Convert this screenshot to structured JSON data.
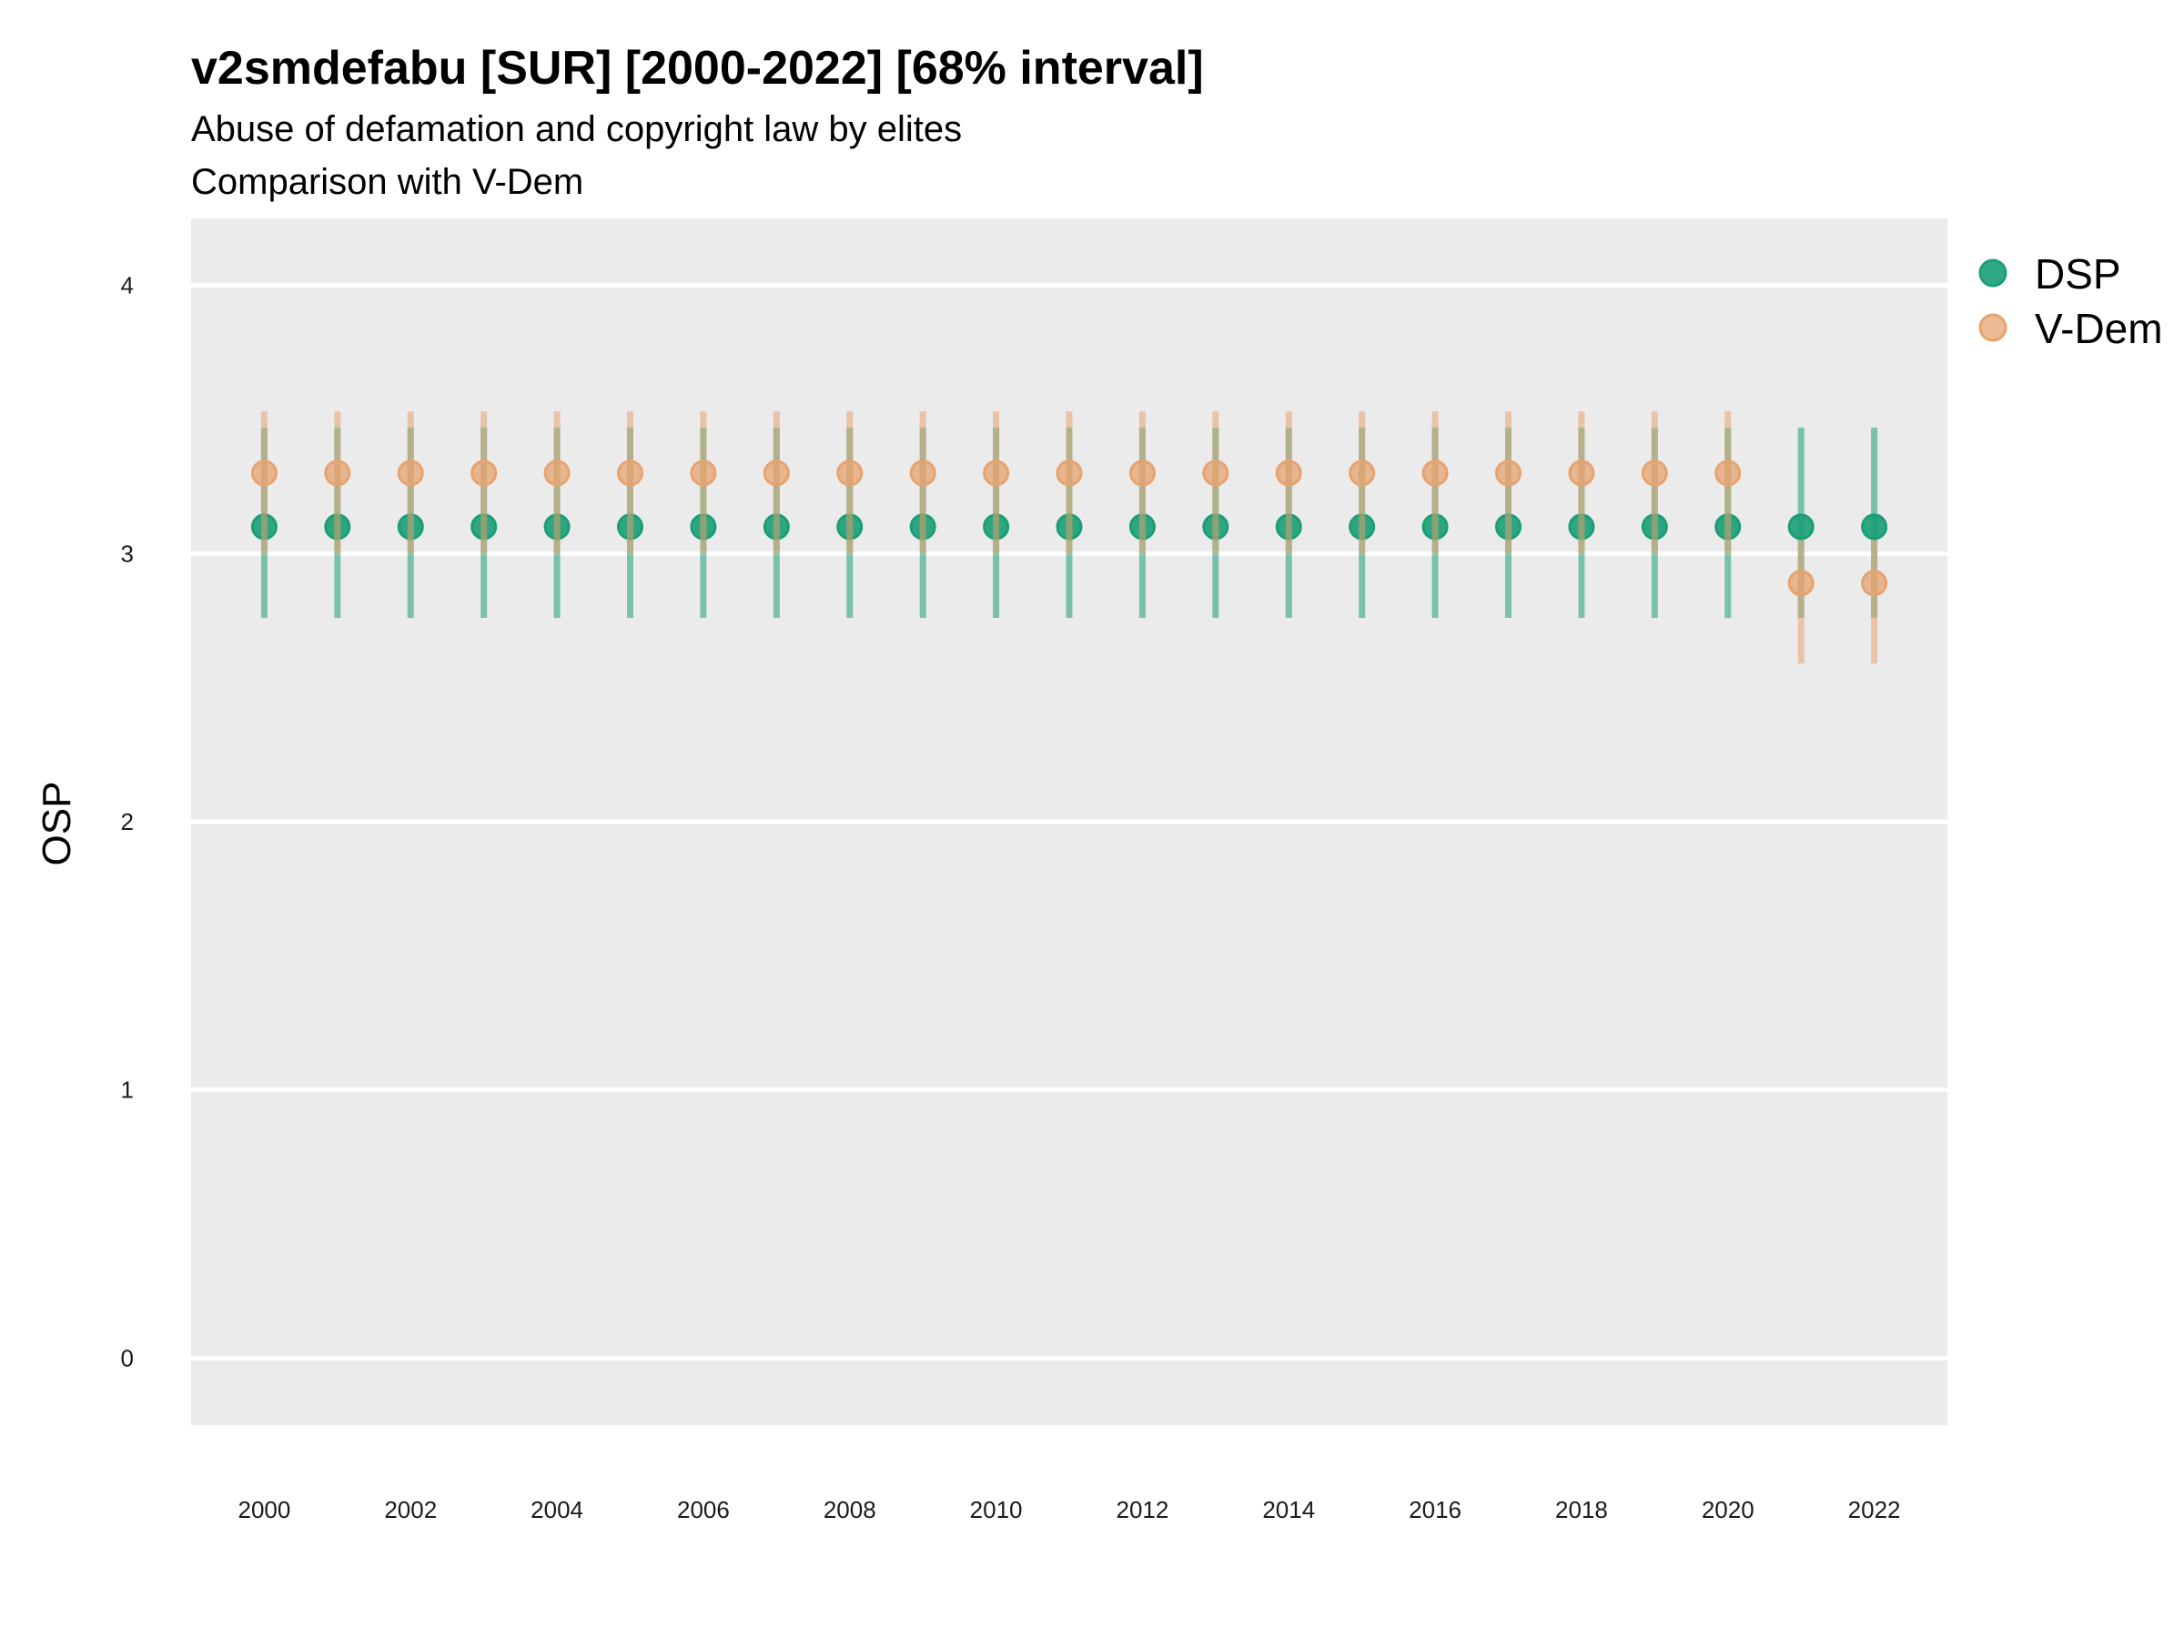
{
  "chart_data": {
    "type": "scatter",
    "title": "v2smdefabu [SUR] [2000-2022] [68% interval]",
    "subtitle_lines": [
      "Abuse of defamation and copyright law by elites",
      "Comparison with V-Dem"
    ],
    "xlabel": "",
    "ylabel": "OSP",
    "x": [
      2000,
      2001,
      2002,
      2003,
      2004,
      2005,
      2006,
      2007,
      2008,
      2009,
      2010,
      2011,
      2012,
      2013,
      2014,
      2015,
      2016,
      2017,
      2018,
      2019,
      2020,
      2021,
      2022
    ],
    "x_ticks": [
      "2000",
      "2002",
      "2004",
      "2006",
      "2008",
      "2010",
      "2012",
      "2014",
      "2016",
      "2018",
      "2020",
      "2022"
    ],
    "y_ticks": [
      "0",
      "1",
      "2",
      "3",
      "4"
    ],
    "xlim": [
      1999,
      2023
    ],
    "ylim": [
      -0.25,
      4.25
    ],
    "grid": "horizontal",
    "legend_position": "right",
    "series": [
      {
        "name": "DSP",
        "color": "#1b9e77",
        "values": [
          3.1,
          3.1,
          3.1,
          3.1,
          3.1,
          3.1,
          3.1,
          3.1,
          3.1,
          3.1,
          3.1,
          3.1,
          3.1,
          3.1,
          3.1,
          3.1,
          3.1,
          3.1,
          3.1,
          3.1,
          3.1,
          3.1,
          3.1
        ],
        "lower": [
          2.76,
          2.76,
          2.76,
          2.76,
          2.76,
          2.76,
          2.76,
          2.76,
          2.76,
          2.76,
          2.76,
          2.76,
          2.76,
          2.76,
          2.76,
          2.76,
          2.76,
          2.76,
          2.76,
          2.76,
          2.76,
          2.76,
          2.76
        ],
        "upper": [
          3.47,
          3.47,
          3.47,
          3.47,
          3.47,
          3.47,
          3.47,
          3.47,
          3.47,
          3.47,
          3.47,
          3.47,
          3.47,
          3.47,
          3.47,
          3.47,
          3.47,
          3.47,
          3.47,
          3.47,
          3.47,
          3.47,
          3.47
        ]
      },
      {
        "name": "V-Dem",
        "color": "#e6a36f",
        "values": [
          3.3,
          3.3,
          3.3,
          3.3,
          3.3,
          3.3,
          3.3,
          3.3,
          3.3,
          3.3,
          3.3,
          3.3,
          3.3,
          3.3,
          3.3,
          3.3,
          3.3,
          3.3,
          3.3,
          3.3,
          3.3,
          2.89,
          2.89
        ],
        "lower": [
          3.0,
          3.0,
          3.0,
          3.0,
          3.0,
          3.0,
          3.0,
          3.0,
          3.0,
          3.0,
          3.0,
          3.0,
          3.0,
          3.0,
          3.0,
          3.0,
          3.0,
          3.0,
          3.0,
          3.0,
          3.0,
          2.59,
          2.59
        ],
        "upper": [
          3.53,
          3.53,
          3.53,
          3.53,
          3.53,
          3.53,
          3.53,
          3.53,
          3.53,
          3.53,
          3.53,
          3.53,
          3.53,
          3.53,
          3.53,
          3.53,
          3.53,
          3.53,
          3.53,
          3.53,
          3.53,
          3.05,
          3.05
        ]
      }
    ]
  }
}
